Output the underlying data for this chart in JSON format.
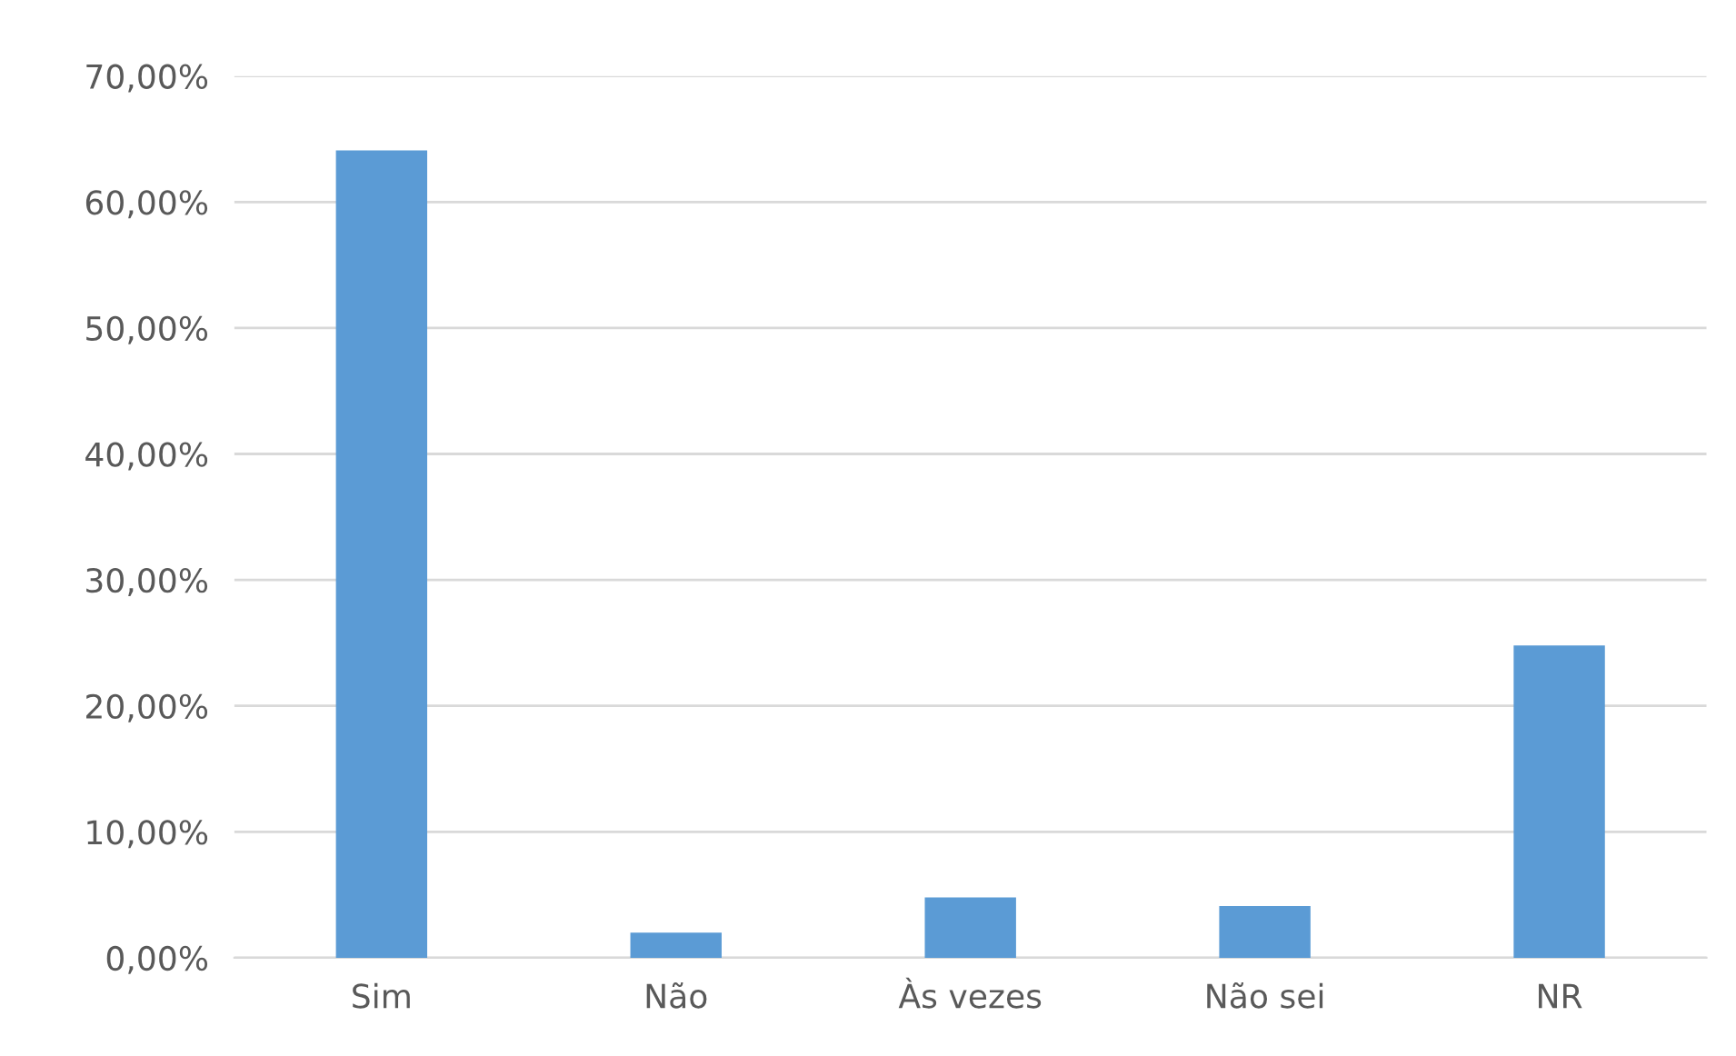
{
  "chart_data": {
    "type": "bar",
    "categories": [
      "Sim",
      "Não",
      "Às vezes",
      "Não sei",
      "NR"
    ],
    "values": [
      64.1,
      2.0,
      4.8,
      4.1,
      24.8
    ],
    "color": "#5b9bd5",
    "ylim": [
      0,
      70
    ],
    "yticks": [
      {
        "value": 0,
        "label": "0,00%"
      },
      {
        "value": 10,
        "label": "10,00%"
      },
      {
        "value": 20,
        "label": "20,00%"
      },
      {
        "value": 30,
        "label": "30,00%"
      },
      {
        "value": 40,
        "label": "40,00%"
      },
      {
        "value": 50,
        "label": "50,00%"
      },
      {
        "value": 60,
        "label": "60,00%"
      },
      {
        "value": 70,
        "label": "70,00%"
      }
    ],
    "grid": "y"
  }
}
